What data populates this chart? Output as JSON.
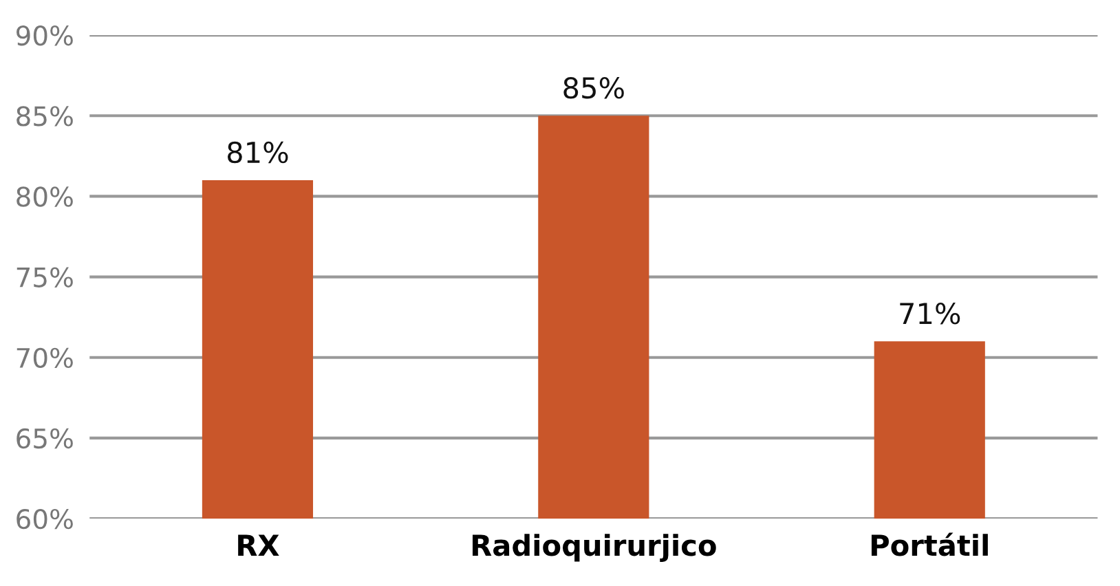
{
  "chart_data": {
    "type": "bar",
    "categories": [
      "RX",
      "Radioquirurjico",
      "Portátil"
    ],
    "values": [
      81,
      85,
      71
    ],
    "value_labels": [
      "81%",
      "85%",
      "71%"
    ],
    "color": "#c9562a",
    "ylim": [
      60,
      90
    ],
    "yticks": [
      {
        "value": 60,
        "label": "60%"
      },
      {
        "value": 65,
        "label": "65%"
      },
      {
        "value": 70,
        "label": "70%"
      },
      {
        "value": 75,
        "label": "75%"
      },
      {
        "value": 80,
        "label": "80%"
      },
      {
        "value": 85,
        "label": "85%"
      },
      {
        "value": 90,
        "label": "90%"
      }
    ],
    "grid": "y"
  }
}
